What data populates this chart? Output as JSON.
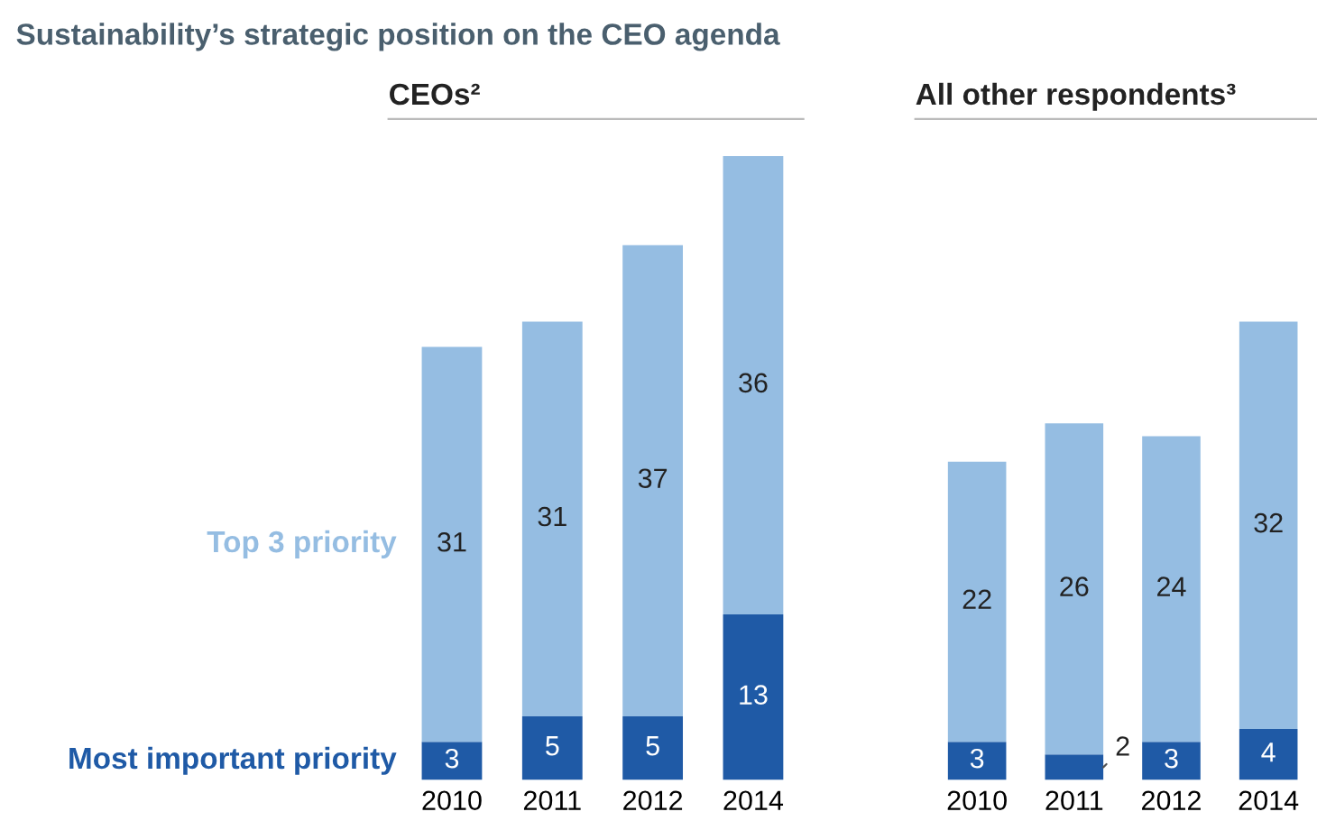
{
  "chart_data": [
    {
      "type": "bar",
      "title": "Sustainability’s strategic position on the CEO agenda",
      "subtitle": "CEOs²",
      "stacked": true,
      "data_labels": true,
      "categories": [
        "2010",
        "2011",
        "2012",
        "2014"
      ],
      "series": [
        {
          "name": "Most important priority",
          "color": "#1f5aa6",
          "values": [
            3,
            5,
            5,
            13
          ]
        },
        {
          "name": "Top 3 priority",
          "color": "#95bde2",
          "values": [
            31,
            31,
            37,
            36
          ]
        }
      ]
    },
    {
      "type": "bar",
      "subtitle": "All other respondents³",
      "stacked": true,
      "data_labels": true,
      "categories": [
        "2010",
        "2011",
        "2012",
        "2014"
      ],
      "series": [
        {
          "color": "#1f5aa6",
          "values": [
            3,
            2,
            3,
            4
          ]
        },
        {
          "color": "#95bde2",
          "values": [
            22,
            26,
            24,
            32
          ]
        }
      ]
    }
  ]
}
